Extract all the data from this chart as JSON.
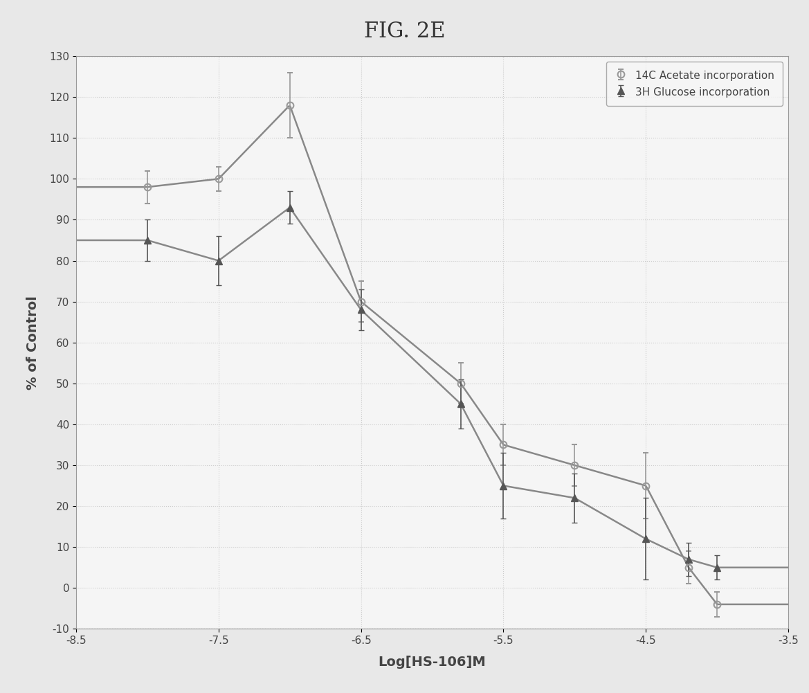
{
  "title": "FIG. 2E",
  "xlabel": "Log[HS-106]M",
  "ylabel": "% of Control",
  "xlim": [
    -8.5,
    -3.5
  ],
  "ylim": [
    -10,
    130
  ],
  "xticks": [
    -8.5,
    -7.5,
    -6.5,
    -5.5,
    -4.5,
    -3.5
  ],
  "yticks": [
    -10,
    0,
    10,
    20,
    30,
    40,
    50,
    60,
    70,
    80,
    90,
    100,
    110,
    120,
    130
  ],
  "plot_bg_color": "#f5f5f5",
  "fig_bg_color": "#e8e8e8",
  "grid_color": "#cccccc",
  "acetate_label": "14C Acetate incorporation",
  "glucose_label": "3H Glucose incorporation",
  "acetate_x": [
    -8.0,
    -7.5,
    -7.0,
    -6.5,
    -5.8,
    -5.5,
    -5.0,
    -4.5,
    -4.2,
    -4.0
  ],
  "acetate_y": [
    98,
    100,
    118,
    70,
    50,
    35,
    30,
    25,
    5,
    -4
  ],
  "acetate_yerr": [
    4,
    3,
    8,
    5,
    5,
    5,
    5,
    8,
    4,
    3
  ],
  "glucose_x": [
    -8.0,
    -7.5,
    -7.0,
    -6.5,
    -5.8,
    -5.5,
    -5.0,
    -4.5,
    -4.2,
    -4.0
  ],
  "glucose_y": [
    85,
    80,
    93,
    68,
    45,
    25,
    22,
    12,
    7,
    5
  ],
  "glucose_yerr": [
    5,
    6,
    4,
    5,
    6,
    8,
    6,
    10,
    4,
    3
  ],
  "curve_color": "#888888",
  "acetate_marker_color": "#999999",
  "glucose_marker_color": "#555555",
  "marker_size": 7,
  "line_width": 1.8
}
